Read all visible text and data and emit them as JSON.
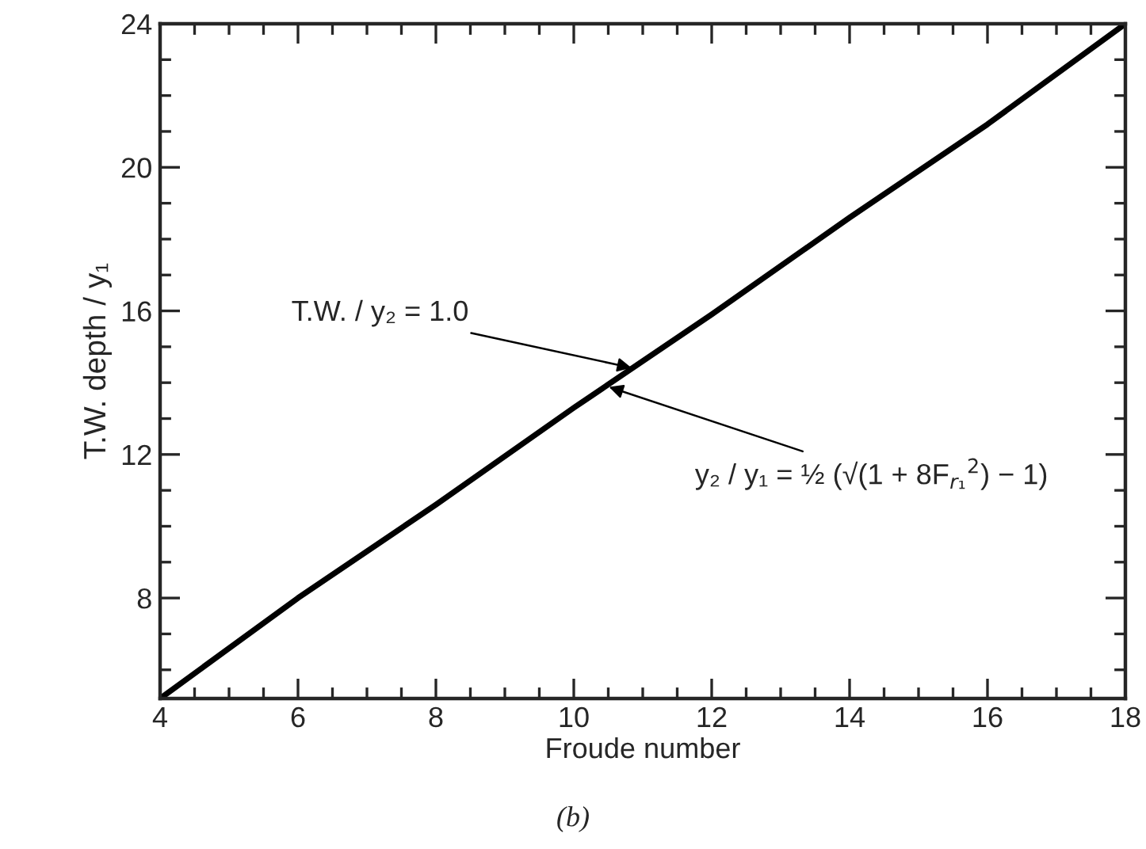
{
  "chart_data": {
    "type": "line",
    "xlabel": "Froude number",
    "ylabel": "T.W. depth / y₁",
    "x": [
      4,
      6,
      8,
      10,
      12,
      14,
      16,
      18
    ],
    "series": [
      {
        "color": "#000000",
        "values": [
          5.2,
          8.0,
          10.6,
          13.3,
          15.9,
          18.6,
          21.2,
          24.0
        ]
      }
    ],
    "xlim": [
      4,
      18
    ],
    "xticks": [
      4,
      6,
      8,
      10,
      12,
      14,
      16,
      18
    ],
    "ylim": [
      5.2,
      24
    ],
    "yticks": [
      8,
      12,
      16,
      20,
      24
    ],
    "grid": false,
    "legend": false,
    "marker": "none",
    "line_style": "solid",
    "annotations": [
      {
        "text": "T.W. / y₂ = 1.0",
        "x": 10.87,
        "y": 14.4
      },
      {
        "text": "y₂ / y₁ = ½ (√(1 + 8F$_{r₁}$$^{2}$) − 1)",
        "x": 10.48,
        "y": 13.9
      },
      "(b)"
    ]
  }
}
